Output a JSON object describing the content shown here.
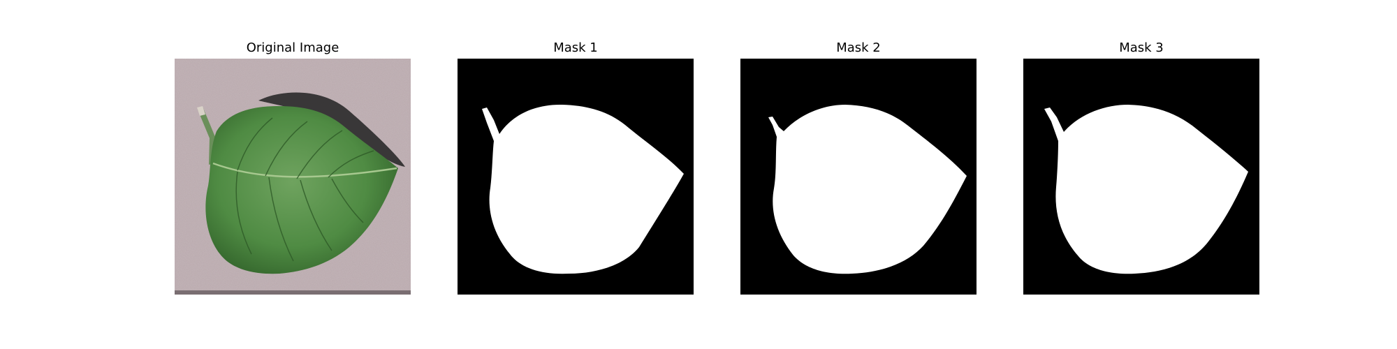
{
  "panels": [
    {
      "title": "Original Image",
      "kind": "photo",
      "subject": "green-leaf"
    },
    {
      "title": "Mask 1",
      "kind": "mask"
    },
    {
      "title": "Mask 2",
      "kind": "mask"
    },
    {
      "title": "Mask 3",
      "kind": "mask"
    }
  ],
  "colors": {
    "background": "#ffffff",
    "photo_background": "#b9a9ad",
    "leaf_dark": "#2f5f28",
    "leaf_mid": "#4f8b43",
    "leaf_light": "#7fb06f",
    "shadow": "#2a2a2a",
    "mask_background": "#000000",
    "mask_foreground": "#ffffff"
  }
}
